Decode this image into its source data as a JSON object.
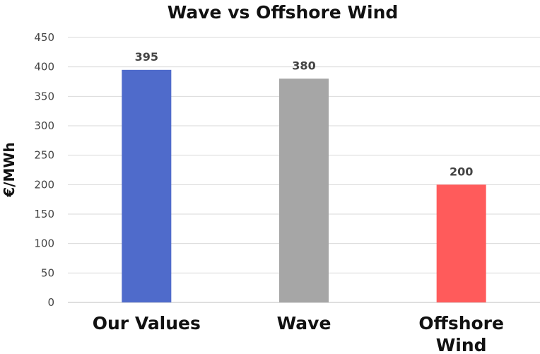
{
  "chart_data": {
    "type": "bar",
    "title": "Wave vs Offshore Wind",
    "xlabel": "",
    "ylabel": "€/MWh",
    "categories": [
      "Our Values",
      "Wave",
      "Offshore Wind"
    ],
    "values": [
      395,
      380,
      200
    ],
    "colors": [
      "#4f6bcb",
      "#a6a6a6",
      "#ff5b5b"
    ],
    "ylim": [
      0,
      450
    ],
    "yticks": [
      0,
      50,
      100,
      150,
      200,
      250,
      300,
      350,
      400,
      450
    ],
    "grid": true,
    "legend": "none",
    "data_labels": true
  }
}
